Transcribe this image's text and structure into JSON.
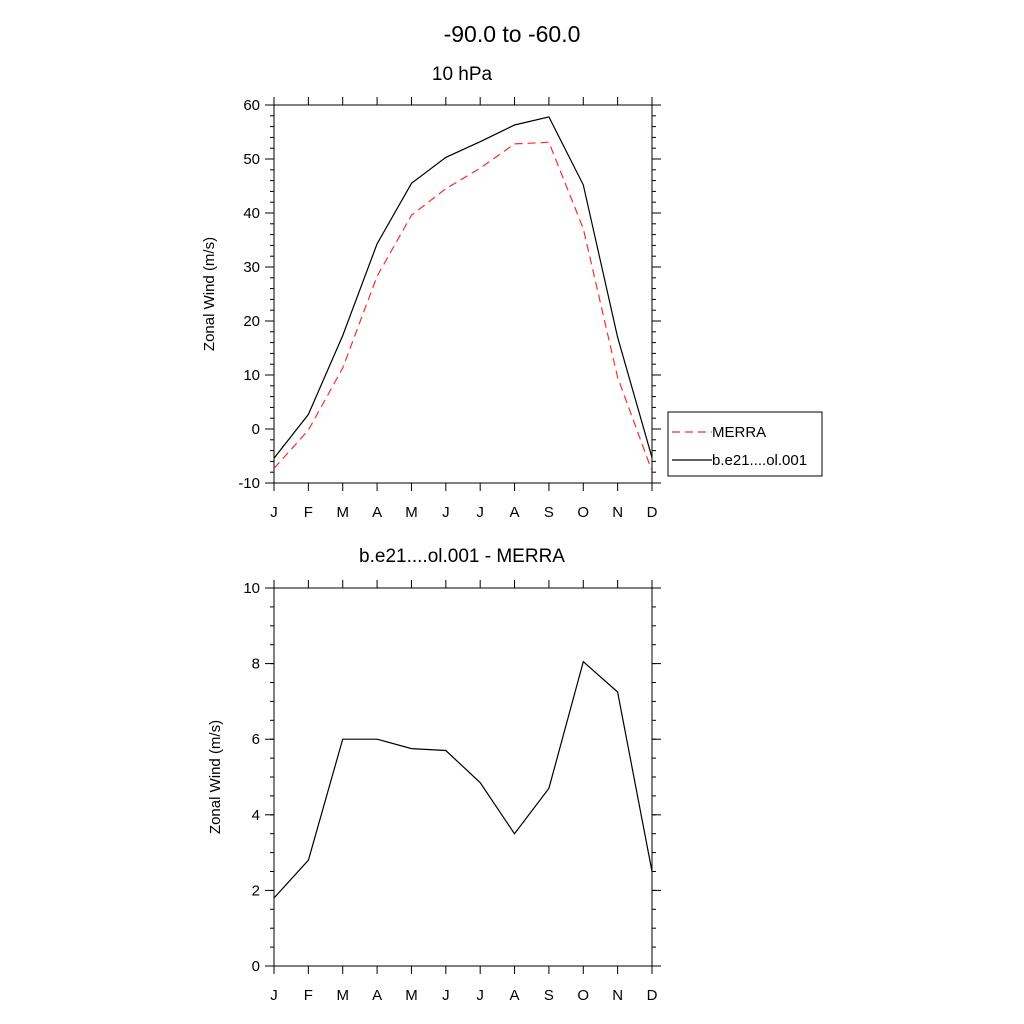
{
  "title": "-90.0 to -60.0",
  "chart_data": [
    {
      "type": "line",
      "title": "10 hPa",
      "ylabel": "Zonal Wind (m/s)",
      "xlabel": "",
      "categories": [
        "J",
        "F",
        "M",
        "A",
        "M",
        "J",
        "J",
        "A",
        "S",
        "O",
        "N",
        "D"
      ],
      "ylim": [
        -10,
        60
      ],
      "yticks": [
        -10,
        0,
        10,
        20,
        30,
        40,
        50,
        60
      ],
      "grid": false,
      "legend": "right",
      "series": [
        {
          "name": "MERRA",
          "color": "#ff2a2a",
          "dash": "dashed",
          "values": [
            -7.3,
            -0.2,
            11.3,
            28.3,
            39.6,
            44.5,
            48.3,
            52.8,
            53.1,
            37.1,
            9.6,
            -7.8
          ]
        },
        {
          "name": "b.e21....ol.001",
          "color": "#000000",
          "dash": "solid",
          "values": [
            -5.4,
            2.7,
            17.3,
            34.3,
            45.5,
            50.3,
            53.2,
            56.3,
            57.8,
            45.2,
            17.0,
            -5.3
          ]
        }
      ]
    },
    {
      "type": "line",
      "title": "b.e21....ol.001 - MERRA",
      "ylabel": "Zonal Wind (m/s)",
      "xlabel": "",
      "categories": [
        "J",
        "F",
        "M",
        "A",
        "M",
        "J",
        "J",
        "A",
        "S",
        "O",
        "N",
        "D"
      ],
      "ylim": [
        0,
        10
      ],
      "yticks": [
        0,
        2,
        4,
        6,
        8,
        10
      ],
      "grid": false,
      "series": [
        {
          "color": "#000000",
          "dash": "solid",
          "values": [
            1.8,
            2.8,
            6.0,
            6.0,
            5.75,
            5.7,
            4.85,
            3.5,
            4.7,
            8.05,
            7.25,
            2.5
          ]
        }
      ]
    }
  ]
}
